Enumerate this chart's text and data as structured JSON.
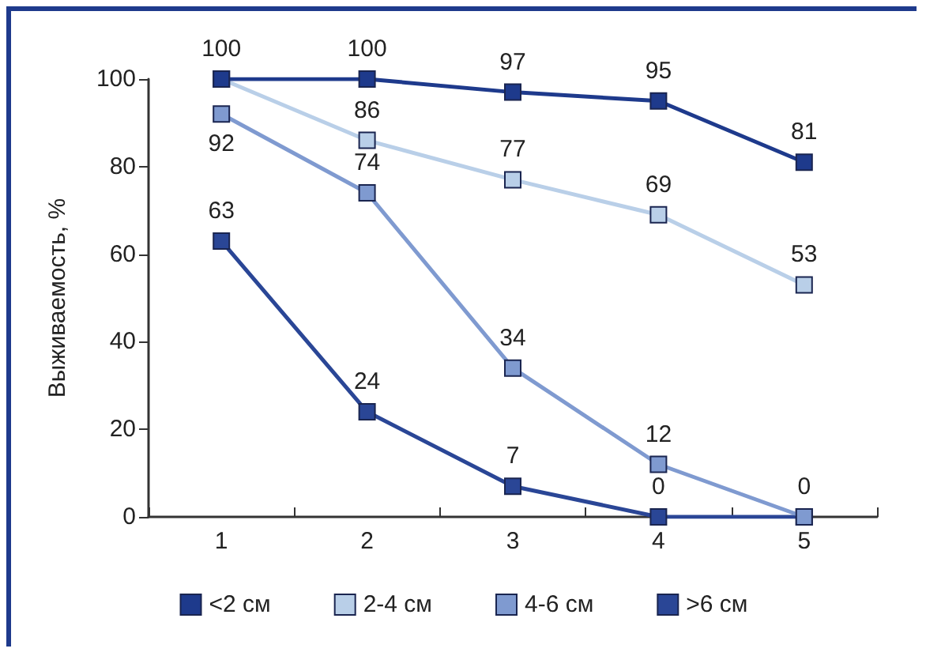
{
  "chart_data": {
    "type": "line",
    "ylabel": "Выживаемость, %",
    "categories": [
      "1",
      "2",
      "3",
      "4",
      "5"
    ],
    "series": [
      {
        "name": "<2 см",
        "color": "#1e3a8c",
        "values": [
          100,
          100,
          97,
          95,
          81
        ],
        "value_labels": [
          "100",
          "100",
          "97",
          "95",
          "81"
        ]
      },
      {
        "name": "2-4 см",
        "color": "#b9cfe8",
        "values": [
          100,
          86,
          77,
          69,
          53
        ],
        "value_labels": [
          null,
          "86",
          "77",
          "69",
          "53"
        ]
      },
      {
        "name": "4-6 см",
        "color": "#7f9ad0",
        "values": [
          92,
          74,
          34,
          12,
          0
        ],
        "value_labels": [
          "92",
          "74",
          "34",
          "12",
          "0"
        ]
      },
      {
        "name": ">6 см",
        "color": "#2a4696",
        "values": [
          63,
          24,
          7,
          0,
          0
        ],
        "value_labels": [
          "63",
          "24",
          "7",
          "0",
          null
        ]
      }
    ],
    "ylim": [
      0,
      100
    ],
    "yticks": [
      0,
      20,
      40,
      60,
      80,
      100
    ],
    "grid": false,
    "legend": "bottom",
    "marker": "square",
    "line_style": "solid"
  }
}
